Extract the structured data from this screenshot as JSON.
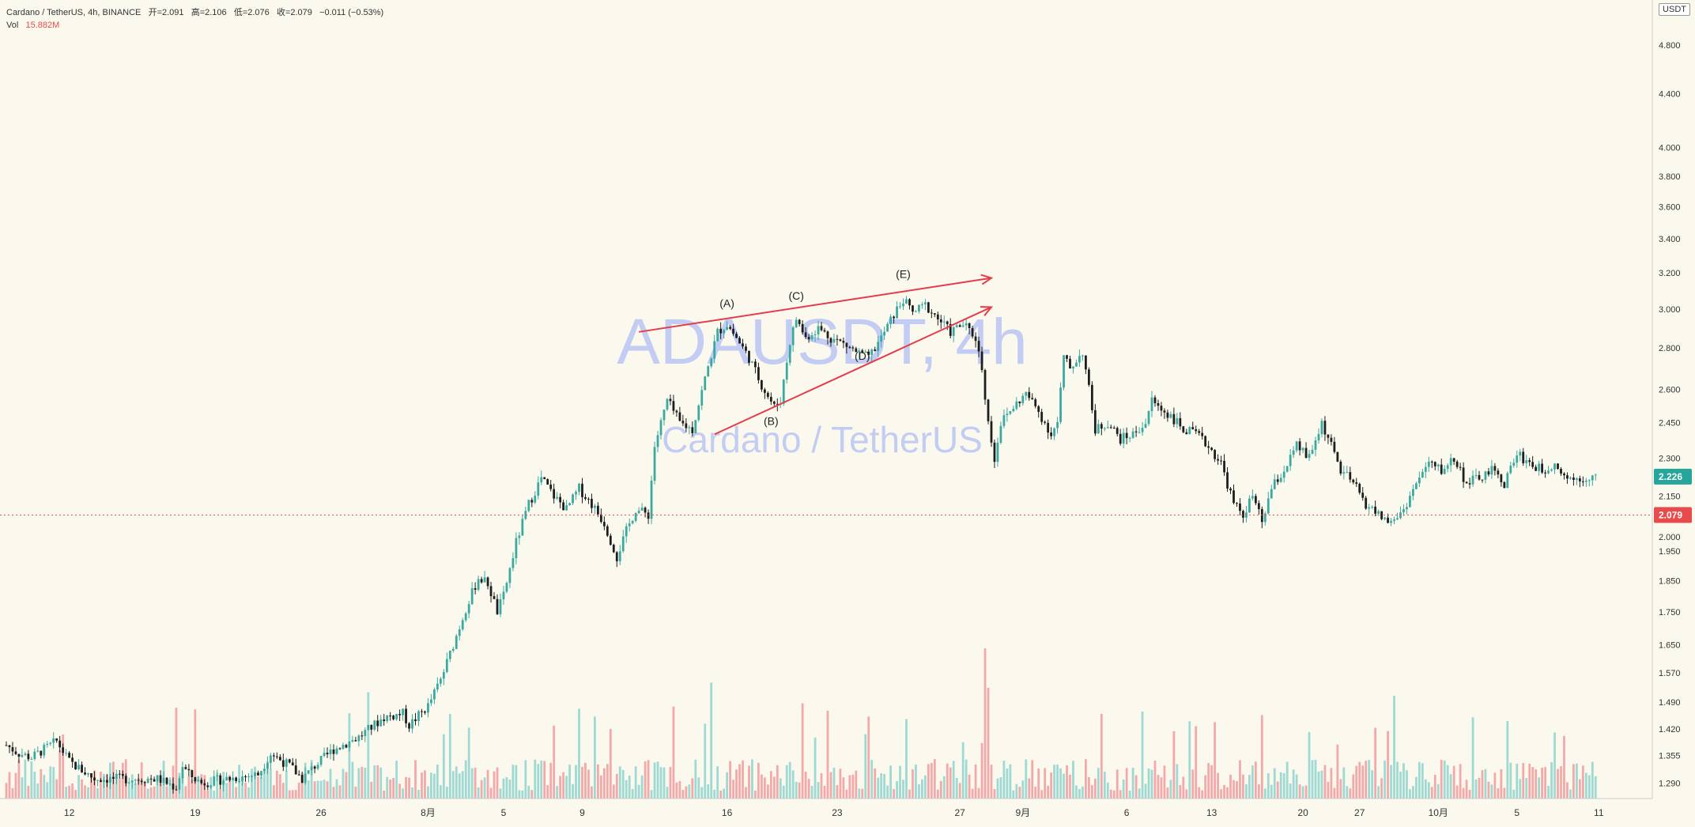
{
  "header": {
    "symbol_line": "Cardano / TetherUS, 4h, BINANCE",
    "open_label": "开",
    "open": "=2.091",
    "high_label": "高",
    "high": "=2.106",
    "low_label": "低",
    "low": "=2.076",
    "close_label": "收",
    "close": "=2.079",
    "change": "−0.011 (−0.53%)",
    "vol_label": "Vol",
    "vol_value": "15.882M"
  },
  "unit_label": "USDT",
  "colors": {
    "background": "#fbf9ee",
    "up": "#3aa99f",
    "down": "#1e1e1e",
    "vol_up": "#9fd9d3",
    "vol_down": "#f3a9a9",
    "trendline": "#e53c4b",
    "watermark": "#c3cdf3",
    "current_price": "#e84b4b",
    "last_price": "#26a69a"
  },
  "watermark": {
    "main": "ADAUSDT, 4h",
    "sub": "Cardano / TetherUS"
  },
  "chart_data": {
    "type": "candlestick",
    "y_scale": "log",
    "ylim": [
      1.255,
      5.2
    ],
    "y_ticks": [
      "4.800",
      "4.400",
      "4.000",
      "3.800",
      "3.600",
      "3.400",
      "3.200",
      "3.000",
      "2.800",
      "2.600",
      "2.450",
      "2.300",
      "2.150",
      "2.000",
      "1.950",
      "1.850",
      "1.750",
      "1.650",
      "1.570",
      "1.490",
      "1.420",
      "1.355",
      "1.290"
    ],
    "x_ticks": [
      "12",
      "19",
      "26",
      "8月",
      "5",
      "9",
      "16",
      "23",
      "27",
      "9月",
      "6",
      "13",
      "20",
      "27",
      "10月",
      "5",
      "11"
    ],
    "current_price": 2.079,
    "current_price_label": "2.079",
    "last_price": 2.226,
    "last_price_label": "2.226",
    "price_path": [
      [
        0,
        1.38
      ],
      [
        4,
        1.36
      ],
      [
        8,
        1.35
      ],
      [
        12,
        1.37
      ],
      [
        16,
        1.39
      ],
      [
        20,
        1.34
      ],
      [
        28,
        1.3
      ],
      [
        36,
        1.3
      ],
      [
        48,
        1.3
      ],
      [
        54,
        1.28
      ],
      [
        56,
        1.33
      ],
      [
        58,
        1.31
      ],
      [
        62,
        1.29
      ],
      [
        70,
        1.3
      ],
      [
        80,
        1.31
      ],
      [
        84,
        1.36
      ],
      [
        90,
        1.33
      ],
      [
        94,
        1.3
      ],
      [
        98,
        1.33
      ],
      [
        104,
        1.37
      ],
      [
        112,
        1.4
      ],
      [
        120,
        1.45
      ],
      [
        126,
        1.46
      ],
      [
        128,
        1.43
      ],
      [
        134,
        1.48
      ],
      [
        138,
        1.55
      ],
      [
        142,
        1.65
      ],
      [
        146,
        1.76
      ],
      [
        150,
        1.86
      ],
      [
        153,
        1.84
      ],
      [
        156,
        1.75
      ],
      [
        158,
        1.8
      ],
      [
        162,
        1.98
      ],
      [
        166,
        2.12
      ],
      [
        170,
        2.22
      ],
      [
        174,
        2.15
      ],
      [
        178,
        2.1
      ],
      [
        182,
        2.18
      ],
      [
        186,
        2.12
      ],
      [
        190,
        2.05
      ],
      [
        194,
        1.93
      ],
      [
        197,
        2.02
      ],
      [
        200,
        2.1
      ],
      [
        204,
        2.08
      ],
      [
        206,
        2.35
      ],
      [
        210,
        2.55
      ],
      [
        214,
        2.45
      ],
      [
        218,
        2.42
      ],
      [
        222,
        2.65
      ],
      [
        226,
        2.88
      ],
      [
        229,
        2.92
      ],
      [
        232,
        2.85
      ],
      [
        236,
        2.75
      ],
      [
        240,
        2.62
      ],
      [
        244,
        2.52
      ],
      [
        246,
        2.55
      ],
      [
        249,
        2.83
      ],
      [
        251,
        2.95
      ],
      [
        254,
        2.85
      ],
      [
        258,
        2.9
      ],
      [
        262,
        2.85
      ],
      [
        266,
        2.82
      ],
      [
        270,
        2.78
      ],
      [
        274,
        2.75
      ],
      [
        278,
        2.85
      ],
      [
        282,
        2.97
      ],
      [
        285,
        3.05
      ],
      [
        288,
        2.98
      ],
      [
        292,
        3.02
      ],
      [
        296,
        2.95
      ],
      [
        300,
        2.88
      ],
      [
        304,
        2.92
      ],
      [
        308,
        2.85
      ],
      [
        310,
        2.7
      ],
      [
        312,
        2.45
      ],
      [
        314,
        2.3
      ],
      [
        316,
        2.45
      ],
      [
        320,
        2.52
      ],
      [
        324,
        2.58
      ],
      [
        328,
        2.5
      ],
      [
        332,
        2.4
      ],
      [
        334,
        2.45
      ],
      [
        336,
        2.75
      ],
      [
        338,
        2.7
      ],
      [
        342,
        2.78
      ],
      [
        344,
        2.6
      ],
      [
        346,
        2.42
      ],
      [
        350,
        2.45
      ],
      [
        354,
        2.38
      ],
      [
        358,
        2.4
      ],
      [
        362,
        2.45
      ],
      [
        364,
        2.55
      ],
      [
        366,
        2.52
      ],
      [
        370,
        2.48
      ],
      [
        374,
        2.42
      ],
      [
        378,
        2.4
      ],
      [
        382,
        2.35
      ],
      [
        386,
        2.28
      ],
      [
        390,
        2.12
      ],
      [
        393,
        2.08
      ],
      [
        396,
        2.15
      ],
      [
        399,
        2.05
      ],
      [
        402,
        2.18
      ],
      [
        406,
        2.25
      ],
      [
        410,
        2.35
      ],
      [
        414,
        2.3
      ],
      [
        418,
        2.45
      ],
      [
        421,
        2.35
      ],
      [
        424,
        2.25
      ],
      [
        428,
        2.2
      ],
      [
        432,
        2.12
      ],
      [
        436,
        2.08
      ],
      [
        440,
        2.05
      ],
      [
        444,
        2.1
      ],
      [
        448,
        2.2
      ],
      [
        452,
        2.28
      ],
      [
        456,
        2.25
      ],
      [
        460,
        2.3
      ],
      [
        464,
        2.2
      ],
      [
        468,
        2.22
      ],
      [
        472,
        2.25
      ],
      [
        476,
        2.2
      ],
      [
        480,
        2.32
      ],
      [
        484,
        2.28
      ],
      [
        488,
        2.25
      ],
      [
        492,
        2.28
      ],
      [
        496,
        2.22
      ],
      [
        500,
        2.22
      ],
      [
        504,
        2.226
      ]
    ]
  },
  "annotations": {
    "wave_labels": [
      "(A)",
      "(B)",
      "(C)",
      "(D)",
      "(E)"
    ]
  }
}
